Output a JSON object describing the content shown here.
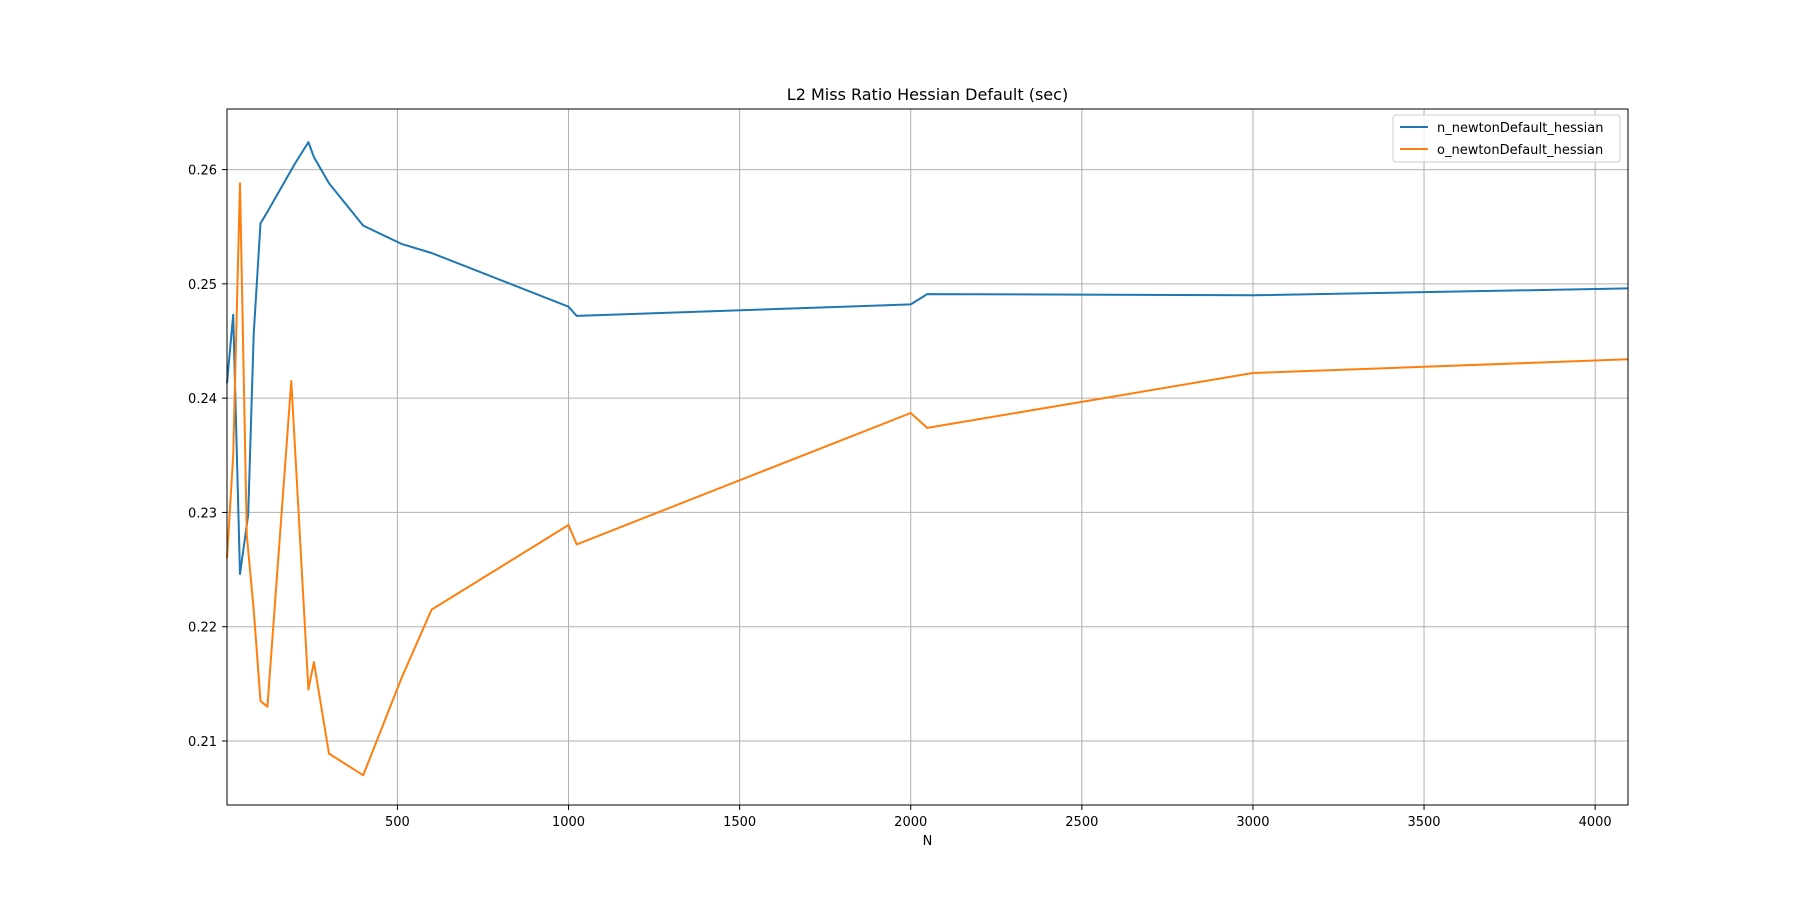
{
  "chart_data": {
    "type": "line",
    "title": "L2 Miss Ratio Hessian Default (sec)",
    "xlabel": "N",
    "ylabel": "",
    "xlim": [
      2,
      4096
    ],
    "ylim": [
      0.2044,
      0.2653
    ],
    "xticks": [
      "500",
      "1000",
      "1500",
      "2000",
      "2500",
      "3000",
      "3500",
      "4000"
    ],
    "yticks": [
      "0.21",
      "0.22",
      "0.23",
      "0.24",
      "0.25",
      "0.26"
    ],
    "grid": true,
    "legend_position": "top-right",
    "series": [
      {
        "name": "n_newtonDefault_hessian",
        "color": "#1f77b4",
        "x": [
          2,
          20,
          40,
          64,
          80,
          100,
          120,
          200,
          240,
          256,
          300,
          400,
          512,
          600,
          1000,
          1024,
          2000,
          2048,
          3000,
          4096
        ],
        "y": [
          0.2413,
          0.2473,
          0.2246,
          0.2298,
          0.2456,
          0.2553,
          0.2563,
          0.2605,
          0.2624,
          0.2611,
          0.2588,
          0.2551,
          0.2535,
          0.2527,
          0.248,
          0.2472,
          0.2482,
          0.2491,
          0.249,
          0.2496
        ]
      },
      {
        "name": "o_newtonDefault_hessian",
        "color": "#ff7f0e",
        "x": [
          2,
          20,
          40,
          60,
          80,
          100,
          120,
          190,
          240,
          256,
          300,
          400,
          512,
          600,
          1000,
          1024,
          2000,
          2048,
          3000,
          4096
        ],
        "y": [
          0.226,
          0.235,
          0.2588,
          0.228,
          0.2215,
          0.2135,
          0.213,
          0.2415,
          0.2145,
          0.2169,
          0.2089,
          0.207,
          0.2155,
          0.2215,
          0.2289,
          0.2272,
          0.2387,
          0.2374,
          0.2422,
          0.2434
        ]
      }
    ]
  }
}
